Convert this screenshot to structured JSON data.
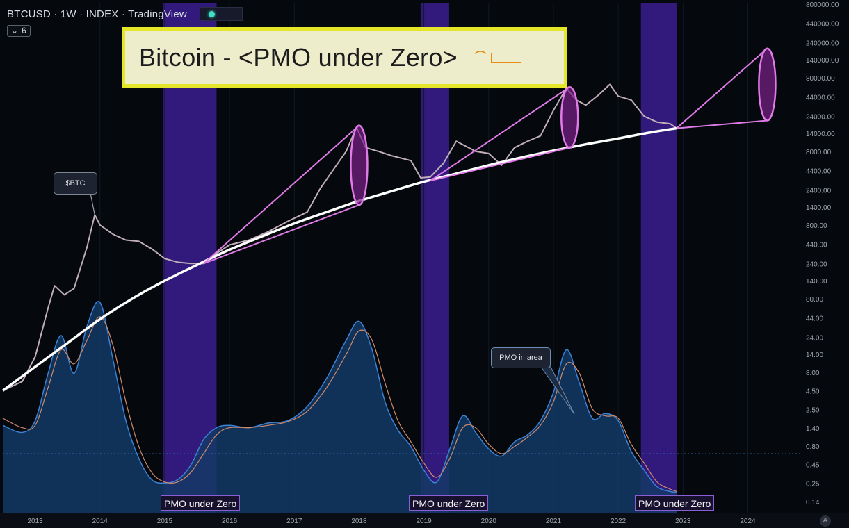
{
  "header": {
    "symbol_line": "BTCUSD · 1W · INDEX · TradingView",
    "indicator_count": "6"
  },
  "title_box": {
    "text": "Bitcoin - <PMO under Zero>"
  },
  "callouts": {
    "btc": "$BTC",
    "pmo": "PMO in area"
  },
  "pmo_labels": [
    "PMO under Zero",
    "PMO under Zero",
    "PMO under Zero"
  ],
  "axis_badge": "A",
  "colors": {
    "background": "#05090d",
    "zero_zone_band": "#3a1d8f",
    "price_candles": "#c2aeb9",
    "trend_curve": "#ffffff",
    "cycle_lines": "#e07be8",
    "pmo_fill": "#143a66",
    "pmo_line": "#3b82d6",
    "signal_line": "#d08a6a",
    "title_border": "#e5e52a"
  },
  "chart_data": {
    "type": "line",
    "price_scale": "log",
    "x_axis": {
      "tick_labels": [
        "2013",
        "2014",
        "2015",
        "2016",
        "2017",
        "2018",
        "2019",
        "2020",
        "2021",
        "2022",
        "2023",
        "2024"
      ],
      "range": [
        2012.5,
        2024.8
      ]
    },
    "y_axis": {
      "tick_labels": [
        "800000.00",
        "440000.00",
        "240000.00",
        "140000.00",
        "80000.00",
        "44000.00",
        "24000.00",
        "14000.00",
        "8000.00",
        "4400.00",
        "2400.00",
        "1400.00",
        "800.00",
        "440.00",
        "240.00",
        "140.00",
        "80.00",
        "44.00",
        "24.00",
        "14.00",
        "8.00",
        "4.50",
        "2.50",
        "1.40",
        "0.80",
        "0.45",
        "0.25",
        "0.14"
      ],
      "ylim": [
        0.1,
        1000000
      ]
    },
    "series": [
      {
        "name": "$BTC",
        "x": [
          2012.5,
          2012.8,
          2013.0,
          2013.2,
          2013.3,
          2013.45,
          2013.6,
          2013.8,
          2013.92,
          2014.0,
          2014.2,
          2014.4,
          2014.6,
          2014.8,
          2015.0,
          2015.2,
          2015.4,
          2015.6,
          2015.8,
          2016.0,
          2016.3,
          2016.6,
          2016.9,
          2017.2,
          2017.4,
          2017.6,
          2017.8,
          2017.96,
          2018.1,
          2018.3,
          2018.5,
          2018.8,
          2018.95,
          2019.1,
          2019.3,
          2019.5,
          2019.8,
          2020.0,
          2020.2,
          2020.4,
          2020.6,
          2020.8,
          2021.0,
          2021.2,
          2021.35,
          2021.5,
          2021.7,
          2021.87,
          2022.0,
          2022.2,
          2022.4,
          2022.6,
          2022.8,
          2022.9
        ],
        "y": [
          4.5,
          6,
          13,
          60,
          120,
          90,
          110,
          400,
          1100,
          800,
          600,
          500,
          480,
          380,
          280,
          250,
          240,
          240,
          330,
          430,
          500,
          650,
          900,
          1200,
          2500,
          4500,
          8000,
          17000,
          9000,
          8000,
          7000,
          6000,
          3500,
          3600,
          5500,
          11000,
          8000,
          7500,
          5200,
          9000,
          11000,
          13000,
          29000,
          58000,
          40000,
          34000,
          47000,
          65000,
          45000,
          40000,
          24000,
          20000,
          19000,
          16500
        ]
      },
      {
        "name": "Trend curve",
        "x": [
          2012.5,
          2013.0,
          2013.5,
          2014.0,
          2014.5,
          2015.0,
          2015.5,
          2016.0,
          2016.5,
          2017.0,
          2017.5,
          2018.0,
          2018.5,
          2019.0,
          2019.5,
          2020.0,
          2020.5,
          2021.0,
          2021.5,
          2022.0,
          2022.5,
          2022.9
        ],
        "y": [
          4.5,
          9.5,
          20,
          42,
          80,
          140,
          230,
          370,
          560,
          840,
          1200,
          1700,
          2300,
          3100,
          4000,
          5200,
          6600,
          8200,
          10000,
          12000,
          14500,
          16500
        ]
      },
      {
        "name": "PMO",
        "x": [
          2012.5,
          2012.8,
          2013.0,
          2013.2,
          2013.4,
          2013.6,
          2013.8,
          2014.0,
          2014.2,
          2014.4,
          2014.6,
          2014.8,
          2015.0,
          2015.2,
          2015.4,
          2015.6,
          2015.8,
          2016.0,
          2016.3,
          2016.6,
          2016.9,
          2017.2,
          2017.5,
          2017.8,
          2018.0,
          2018.2,
          2018.4,
          2018.6,
          2018.8,
          2019.0,
          2019.2,
          2019.4,
          2019.6,
          2019.8,
          2020.0,
          2020.2,
          2020.4,
          2020.6,
          2020.8,
          2021.0,
          2021.2,
          2021.4,
          2021.6,
          2021.8,
          2022.0,
          2022.2,
          2022.4,
          2022.6,
          2022.8,
          2022.9
        ],
        "y": [
          0.6,
          0.45,
          0.7,
          1.7,
          2.5,
          1.7,
          2.7,
          3.2,
          2.0,
          0.7,
          -0.1,
          -0.55,
          -0.62,
          -0.55,
          -0.25,
          0.3,
          0.55,
          0.6,
          0.55,
          0.65,
          0.7,
          1.0,
          1.6,
          2.4,
          2.8,
          2.2,
          1.1,
          0.5,
          0.15,
          -0.35,
          -0.6,
          0.1,
          0.8,
          0.45,
          0.1,
          -0.05,
          0.25,
          0.4,
          0.7,
          1.3,
          2.2,
          1.5,
          0.75,
          0.85,
          0.7,
          0.05,
          -0.35,
          -0.7,
          -0.8,
          -0.82
        ]
      },
      {
        "name": "Signal",
        "x": [
          2012.5,
          2012.8,
          2013.0,
          2013.2,
          2013.4,
          2013.6,
          2013.8,
          2014.0,
          2014.2,
          2014.4,
          2014.6,
          2014.8,
          2015.0,
          2015.2,
          2015.4,
          2015.6,
          2015.8,
          2016.0,
          2016.3,
          2016.6,
          2016.9,
          2017.2,
          2017.5,
          2017.8,
          2018.0,
          2018.2,
          2018.4,
          2018.6,
          2018.8,
          2019.0,
          2019.2,
          2019.4,
          2019.6,
          2019.8,
          2020.0,
          2020.2,
          2020.4,
          2020.6,
          2020.8,
          2021.0,
          2021.2,
          2021.4,
          2021.6,
          2021.8,
          2022.0,
          2022.2,
          2022.4,
          2022.6,
          2022.8,
          2022.9
        ],
        "y": [
          0.75,
          0.55,
          0.6,
          1.4,
          2.2,
          1.9,
          2.4,
          2.9,
          2.3,
          1.1,
          0.15,
          -0.4,
          -0.6,
          -0.6,
          -0.4,
          0.0,
          0.4,
          0.55,
          0.55,
          0.6,
          0.68,
          0.9,
          1.4,
          2.1,
          2.6,
          2.4,
          1.5,
          0.7,
          0.25,
          -0.2,
          -0.5,
          -0.1,
          0.55,
          0.55,
          0.2,
          0.0,
          0.15,
          0.35,
          0.6,
          1.1,
          1.9,
          1.7,
          0.95,
          0.8,
          0.75,
          0.2,
          -0.2,
          -0.6,
          -0.75,
          -0.8
        ]
      }
    ],
    "zero_zones": [
      {
        "x_start": 2014.98,
        "x_end": 2015.8,
        "label": "PMO under Zero"
      },
      {
        "x_start": 2018.95,
        "x_end": 2019.39,
        "label": "PMO under Zero"
      },
      {
        "x_start": 2022.35,
        "x_end": 2022.9,
        "label": "PMO under Zero"
      }
    ],
    "cycle_projections": [
      {
        "x_start": 2015.6,
        "y_start": 240,
        "x_end": 2018.0,
        "y_top": 18000,
        "y_bottom": 1500
      },
      {
        "x_start": 2019.1,
        "y_start": 3200,
        "x_end": 2021.25,
        "y_top": 60000,
        "y_bottom": 9000
      },
      {
        "x_start": 2022.9,
        "y_start": 16500,
        "x_end": 2024.3,
        "y_top": 200000,
        "y_bottom": 21000
      }
    ]
  }
}
